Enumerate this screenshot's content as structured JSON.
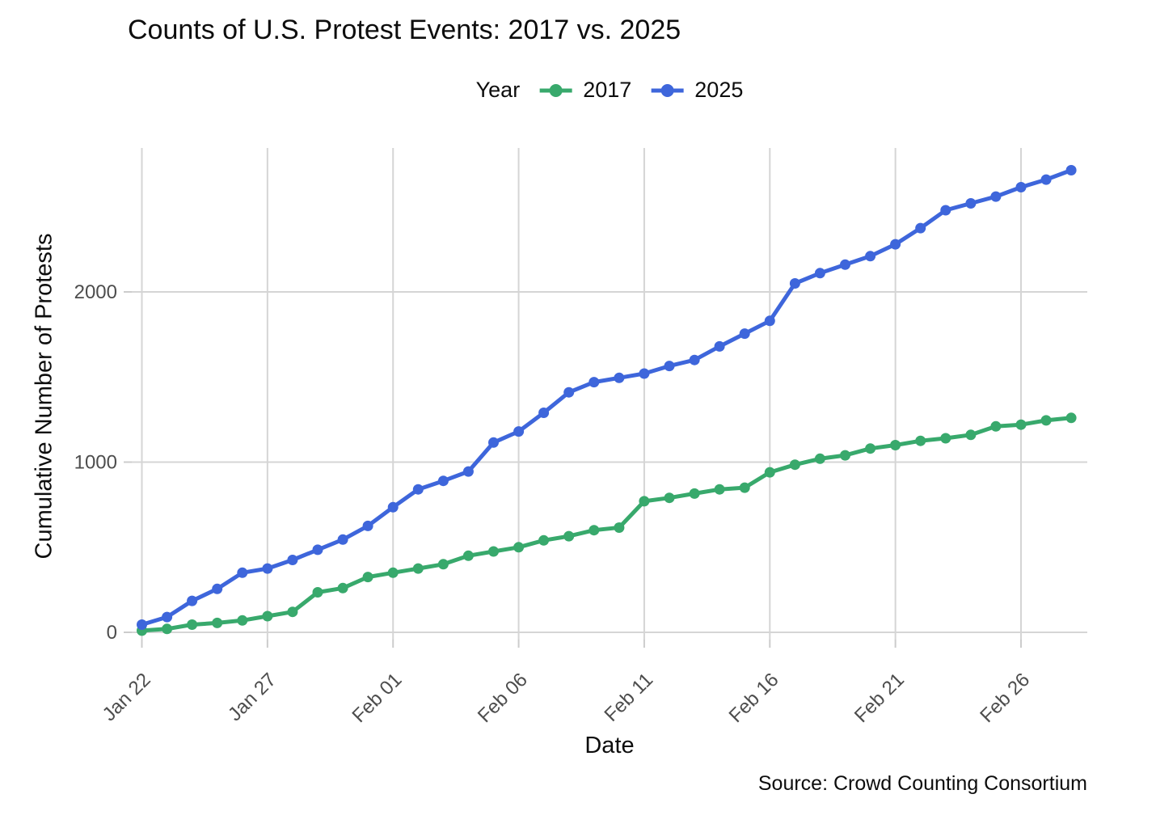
{
  "header": {
    "title": "Counts of U.S. Protest Events: 2017 vs. 2025"
  },
  "legend": {
    "title": "Year"
  },
  "axes": {
    "x_label": "Date",
    "y_label": "Cumulative Number of Protests"
  },
  "footer": {
    "source": "Source: Crowd Counting Consortium"
  },
  "colors": {
    "grid": "#d5d5d5",
    "tick_mark": "#cccccc",
    "tick_text": "#4d4d4d"
  },
  "chart_data": {
    "type": "line",
    "title": "Counts of U.S. Protest Events: 2017 vs. 2025",
    "xlabel": "Date",
    "ylabel": "Cumulative Number of Protests",
    "grid": true,
    "legend_position": "top-center",
    "ylim": [
      0,
      2850
    ],
    "y_ticks": [
      0,
      1000,
      2000
    ],
    "x": [
      "Jan 22",
      "Jan 23",
      "Jan 24",
      "Jan 25",
      "Jan 26",
      "Jan 27",
      "Jan 28",
      "Jan 29",
      "Jan 30",
      "Jan 31",
      "Feb 01",
      "Feb 02",
      "Feb 03",
      "Feb 04",
      "Feb 05",
      "Feb 06",
      "Feb 07",
      "Feb 08",
      "Feb 09",
      "Feb 10",
      "Feb 11",
      "Feb 12",
      "Feb 13",
      "Feb 14",
      "Feb 15",
      "Feb 16",
      "Feb 17",
      "Feb 18",
      "Feb 19",
      "Feb 20",
      "Feb 21",
      "Feb 22",
      "Feb 23",
      "Feb 24",
      "Feb 25",
      "Feb 26",
      "Feb 27",
      "Feb 28"
    ],
    "x_tick_indices": [
      0,
      5,
      10,
      15,
      20,
      25,
      30,
      35
    ],
    "x_tick_labels": [
      "Jan 22",
      "Jan 27",
      "Feb 01",
      "Feb 06",
      "Feb 11",
      "Feb 16",
      "Feb 21",
      "Feb 26"
    ],
    "series": [
      {
        "name": "2017",
        "color": "#38a96c",
        "values": [
          10,
          20,
          45,
          55,
          70,
          95,
          120,
          235,
          260,
          325,
          350,
          375,
          400,
          450,
          475,
          500,
          540,
          565,
          600,
          615,
          770,
          790,
          815,
          840,
          850,
          940,
          985,
          1020,
          1040,
          1080,
          1100,
          1125,
          1140,
          1160,
          1210,
          1220,
          1245,
          1260
        ]
      },
      {
        "name": "2025",
        "color": "#3e66db",
        "values": [
          45,
          90,
          185,
          255,
          350,
          375,
          425,
          485,
          545,
          625,
          735,
          840,
          890,
          945,
          1115,
          1180,
          1290,
          1410,
          1470,
          1495,
          1520,
          1565,
          1600,
          1680,
          1755,
          1830,
          2050,
          2110,
          2160,
          2210,
          2280,
          2375,
          2480,
          2520,
          2560,
          2615,
          2660,
          2715
        ]
      }
    ]
  }
}
